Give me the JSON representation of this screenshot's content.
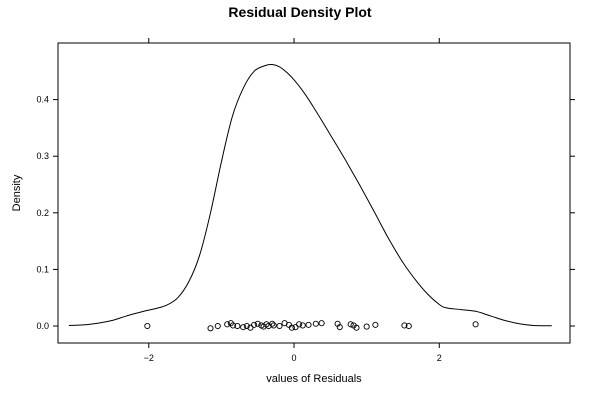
{
  "chart_data": {
    "type": "line",
    "title": "Residual Density Plot",
    "xlabel": "values of Residuals",
    "ylabel": "Density",
    "xlim": [
      -3.25,
      3.8
    ],
    "ylim": [
      -0.03,
      0.5
    ],
    "x_ticks": [
      -2,
      0,
      2
    ],
    "x_tick_labels": [
      "−2",
      "0",
      "2"
    ],
    "y_ticks": [
      0.0,
      0.1,
      0.2,
      0.3,
      0.4
    ],
    "y_tick_labels": [
      "0.0",
      "0.1",
      "0.2",
      "0.3",
      "0.4"
    ],
    "grid": false,
    "series": [
      {
        "type": "line",
        "x": [
          -3.1,
          -2.9,
          -2.7,
          -2.5,
          -2.3,
          -2.1,
          -1.9,
          -1.75,
          -1.6,
          -1.45,
          -1.3,
          -1.15,
          -1.0,
          -0.85,
          -0.7,
          -0.55,
          -0.4,
          -0.3,
          -0.2,
          -0.1,
          0.0,
          0.15,
          0.3,
          0.5,
          0.7,
          0.9,
          1.1,
          1.3,
          1.5,
          1.7,
          1.85,
          2.0,
          2.1,
          2.3,
          2.5,
          2.7,
          2.9,
          3.1,
          3.3,
          3.55
        ],
        "y": [
          0.001,
          0.002,
          0.005,
          0.01,
          0.018,
          0.025,
          0.031,
          0.037,
          0.05,
          0.078,
          0.125,
          0.2,
          0.29,
          0.37,
          0.42,
          0.45,
          0.46,
          0.462,
          0.458,
          0.448,
          0.435,
          0.41,
          0.38,
          0.338,
          0.295,
          0.25,
          0.203,
          0.155,
          0.112,
          0.077,
          0.055,
          0.038,
          0.032,
          0.029,
          0.026,
          0.018,
          0.01,
          0.004,
          0.001,
          0.0005
        ]
      },
      {
        "type": "scatter",
        "x": [
          -2.02,
          -1.15,
          -1.05,
          -0.92,
          -0.87,
          -0.84,
          -0.78,
          -0.7,
          -0.65,
          -0.6,
          -0.55,
          -0.5,
          -0.45,
          -0.42,
          -0.38,
          -0.35,
          -0.3,
          -0.28,
          -0.2,
          -0.13,
          -0.07,
          -0.03,
          0.02,
          0.07,
          0.12,
          0.2,
          0.3,
          0.38,
          0.6,
          0.63,
          0.78,
          0.82,
          0.86,
          1.0,
          1.12,
          1.52,
          1.58,
          2.5
        ],
        "y": [
          0.0,
          -0.004,
          0.0,
          0.003,
          0.005,
          0.001,
          0.0,
          -0.002,
          0.0,
          -0.003,
          0.002,
          0.004,
          0.001,
          -0.001,
          0.003,
          0.0,
          0.004,
          0.001,
          0.0,
          0.005,
          0.002,
          -0.003,
          -0.002,
          0.003,
          0.001,
          0.002,
          0.004,
          0.005,
          0.004,
          -0.002,
          0.003,
          0.001,
          -0.003,
          -0.001,
          0.002,
          0.001,
          0.0,
          0.003
        ]
      }
    ]
  }
}
